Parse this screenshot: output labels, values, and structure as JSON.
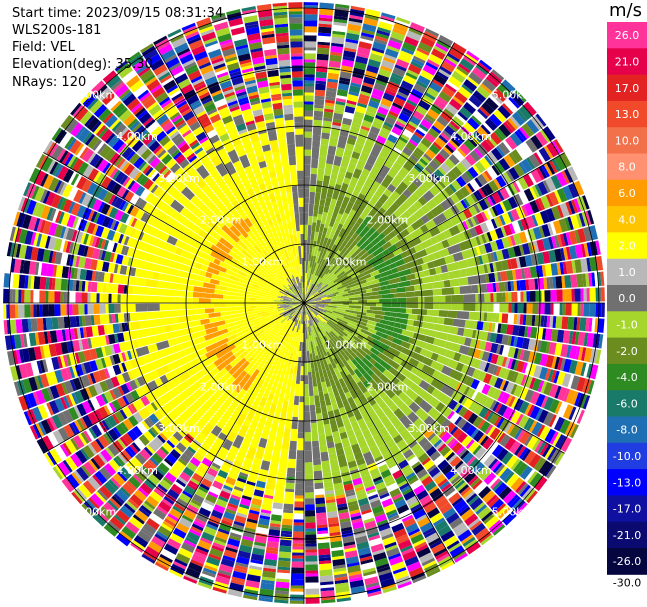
{
  "header": {
    "start_time": "Start time: 2023/09/15 08:31:34",
    "instrument": "WLS200s-181",
    "field": "Field: VEL",
    "elevation": "Elevation(deg): 35.30",
    "nrays": "NRays: 120"
  },
  "colorbar": {
    "unit": "m/s",
    "bins": [
      {
        "label": "26.0",
        "color": "#ff3399"
      },
      {
        "label": "21.0",
        "color": "#e6004c"
      },
      {
        "label": "17.0",
        "color": "#e32222"
      },
      {
        "label": "13.0",
        "color": "#f04a2a"
      },
      {
        "label": "10.0",
        "color": "#f2704a"
      },
      {
        "label": "8.0",
        "color": "#ff9070"
      },
      {
        "label": "6.0",
        "color": "#ff9d00"
      },
      {
        "label": "4.0",
        "color": "#ffc400"
      },
      {
        "label": "2.0",
        "color": "#ffff00"
      },
      {
        "label": "1.0",
        "color": "#b8b8b8"
      },
      {
        "label": "0.0",
        "color": "#707070"
      },
      {
        "label": "-1.0",
        "color": "#a6d62c"
      },
      {
        "label": "-2.0",
        "color": "#6b8c1f"
      },
      {
        "label": "-4.0",
        "color": "#2e8b22"
      },
      {
        "label": "-6.0",
        "color": "#1a7a6a"
      },
      {
        "label": "-8.0",
        "color": "#1f6fb4"
      },
      {
        "label": "-10.0",
        "color": "#1f3de0"
      },
      {
        "label": "-13.0",
        "color": "#0000ff"
      },
      {
        "label": "-17.0",
        "color": "#1010a0"
      },
      {
        "label": "-21.0",
        "color": "#0a0a70"
      },
      {
        "label": "-26.0",
        "color": "#050540"
      }
    ],
    "bottom_label": "-30.0"
  },
  "range_rings": [
    "1.00km",
    "2.00km",
    "3.00km",
    "4.00km",
    "5.00km"
  ]
}
